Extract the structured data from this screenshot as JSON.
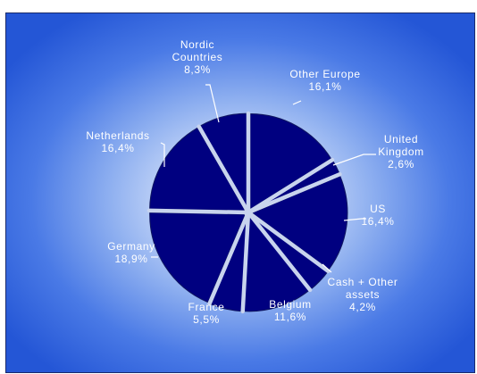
{
  "header": {
    "title": ""
  },
  "colors": {
    "slice": "#000080",
    "slice_stroke": "#101860",
    "separator": "#c8d4ee",
    "leader": "#ffffff",
    "label_text": "#ffffff"
  },
  "chart_data": {
    "type": "pie",
    "title": "",
    "start_angle_deg": 0,
    "direction": "clockwise",
    "slices": [
      {
        "name": "Other Europe",
        "value": 16.1,
        "value_label": "16,1%"
      },
      {
        "name": "United Kingdom",
        "value": 2.6,
        "value_label": "2,6%"
      },
      {
        "name": "US",
        "value": 16.4,
        "value_label": "16,4%"
      },
      {
        "name": "Cash + Other assets",
        "value": 4.2,
        "value_label": "4,2%"
      },
      {
        "name": "Belgium",
        "value": 11.6,
        "value_label": "11,6%"
      },
      {
        "name": "France",
        "value": 5.5,
        "value_label": "5,5%"
      },
      {
        "name": "Germany",
        "value": 18.9,
        "value_label": "18,9%"
      },
      {
        "name": "Netherlands",
        "value": 16.4,
        "value_label": "16,4%"
      },
      {
        "name": "Nordic Countries",
        "value": 8.3,
        "value_label": "8,3%"
      }
    ],
    "labels": [
      {
        "lines": [
          "Other Europe",
          "16,1%"
        ]
      },
      {
        "lines": [
          "United",
          "Kingdom",
          "2,6%"
        ]
      },
      {
        "lines": [
          "US",
          "16,4%"
        ]
      },
      {
        "lines": [
          "Cash + Other",
          "assets",
          "4,2%"
        ]
      },
      {
        "lines": [
          "Belgium",
          "11,6%"
        ]
      },
      {
        "lines": [
          "France",
          "5,5%"
        ]
      },
      {
        "lines": [
          "Germany",
          "18,9%"
        ]
      },
      {
        "lines": [
          "Netherlands",
          "16,4%"
        ]
      },
      {
        "lines": [
          "Nordic",
          "Countries",
          "8,3%"
        ]
      }
    ]
  }
}
